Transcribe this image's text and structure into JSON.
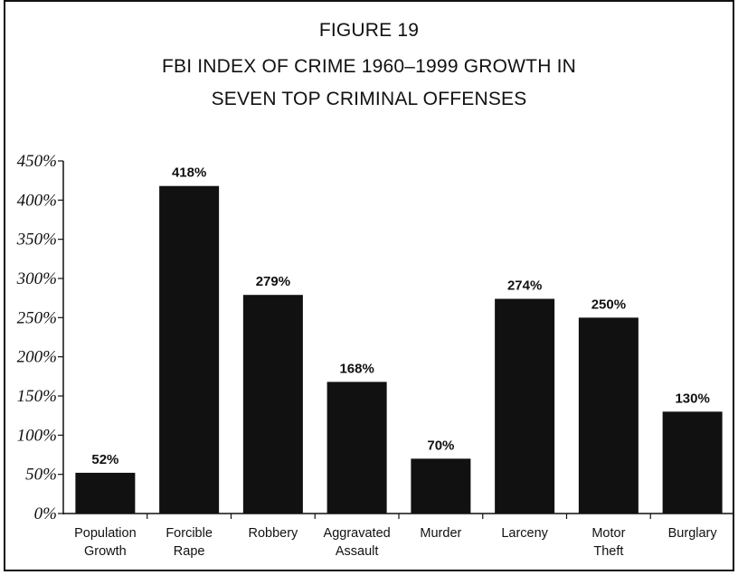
{
  "figure_label": "FIGURE 19",
  "title_line1": "FBI INDEX OF CRIME 1960–1999 GROWTH IN",
  "title_line2": "SEVEN TOP CRIMINAL OFFENSES",
  "chart_data": {
    "type": "bar",
    "title": "FBI INDEX OF CRIME 1960–1999 GROWTH IN SEVEN TOP CRIMINAL OFFENSES",
    "xlabel": "",
    "ylabel": "",
    "ylim": [
      0,
      450
    ],
    "y_ticks": [
      "0%",
      "50%",
      "100%",
      "150%",
      "200%",
      "250%",
      "300%",
      "350%",
      "400%",
      "450%"
    ],
    "categories": [
      [
        "Population",
        "Growth"
      ],
      [
        "Forcible",
        "Rape"
      ],
      [
        "Robbery"
      ],
      [
        "Aggravated",
        "Assault"
      ],
      [
        "Murder"
      ],
      [
        "Larceny"
      ],
      [
        "Motor",
        "Theft"
      ],
      [
        "Burglary"
      ]
    ],
    "values": [
      52,
      418,
      279,
      168,
      70,
      274,
      250,
      130
    ],
    "value_labels": [
      "52%",
      "418%",
      "279%",
      "168%",
      "70%",
      "274%",
      "250%",
      "130%"
    ],
    "grid": false,
    "legend": "none",
    "bar_color": "#111111"
  }
}
